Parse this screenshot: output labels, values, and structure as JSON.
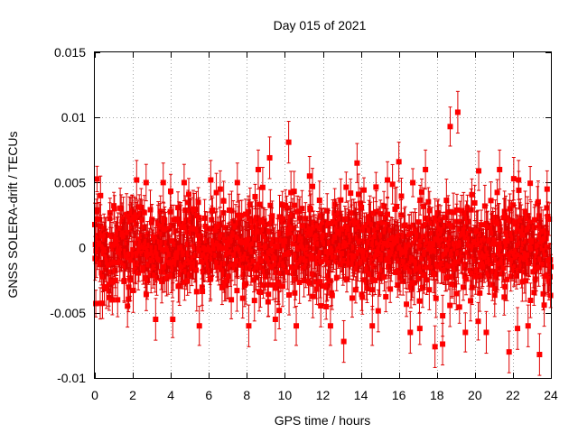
{
  "chart_data": {
    "type": "scatter",
    "title": "Day 015 of 2021",
    "xlabel": "GPS time / hours",
    "ylabel": "GNSS SOLERA-drift / TECUs",
    "xlim": [
      0,
      24
    ],
    "ylim": [
      -0.01,
      0.015
    ],
    "xticks": [
      0,
      2,
      4,
      6,
      8,
      10,
      12,
      14,
      16,
      18,
      20,
      22,
      24
    ],
    "yticks": [
      -0.01,
      -0.005,
      0,
      0.005,
      0.01,
      0.015
    ],
    "xtick_labels": [
      "0",
      "2",
      "4",
      "6",
      "8",
      "10",
      "12",
      "14",
      "16",
      "18",
      "20",
      "22",
      "24"
    ],
    "ytick_labels": [
      "-0.01",
      "-0.005",
      "0",
      "0.005",
      "0.01",
      "0.015"
    ],
    "grid": true,
    "marker": "square",
    "error_bars": true,
    "series_color": "#ff0000",
    "series": [
      {
        "points": [
          [
            0.1,
            0.0022,
            0.0012
          ],
          [
            0.3,
            0.004,
            0.0015
          ],
          [
            0.5,
            -0.003,
            0.0014
          ],
          [
            1.2,
            -0.004,
            0.0013
          ],
          [
            2.2,
            0.0052,
            0.0015
          ],
          [
            2.7,
            0.005,
            0.0014
          ],
          [
            3.2,
            -0.0055,
            0.0016
          ],
          [
            3.6,
            0.005,
            0.0015
          ],
          [
            4.1,
            -0.0055,
            0.0014
          ],
          [
            4.7,
            0.005,
            0.0014
          ],
          [
            5.5,
            -0.006,
            0.0015
          ],
          [
            6.1,
            0.0052,
            0.0015
          ],
          [
            6.6,
            0.0045,
            0.0014
          ],
          [
            7.5,
            0.005,
            0.0015
          ],
          [
            8.1,
            -0.006,
            0.0016
          ],
          [
            8.6,
            0.006,
            0.0015
          ],
          [
            9.2,
            0.0069,
            0.0016
          ],
          [
            9.5,
            -0.0055,
            0.0016
          ],
          [
            10.2,
            0.0081,
            0.0016
          ],
          [
            10.6,
            -0.006,
            0.0015
          ],
          [
            11.3,
            0.0055,
            0.0015
          ],
          [
            12.4,
            -0.006,
            0.0015
          ],
          [
            13.1,
            -0.0072,
            0.0016
          ],
          [
            13.8,
            0.0065,
            0.0015
          ],
          [
            14.6,
            -0.006,
            0.0015
          ],
          [
            15.4,
            0.0052,
            0.0014
          ],
          [
            16.0,
            0.0066,
            0.0015
          ],
          [
            16.6,
            -0.0065,
            0.0016
          ],
          [
            17.4,
            0.006,
            0.0015
          ],
          [
            17.9,
            -0.0076,
            0.0016
          ],
          [
            18.3,
            -0.0074,
            0.0016
          ],
          [
            18.7,
            0.0093,
            0.0015
          ],
          [
            19.1,
            0.0104,
            0.0016
          ],
          [
            19.5,
            -0.0065,
            0.0015
          ],
          [
            20.2,
            0.0059,
            0.0015
          ],
          [
            20.6,
            -0.0065,
            0.0016
          ],
          [
            21.3,
            0.006,
            0.0015
          ],
          [
            21.8,
            -0.008,
            0.0016
          ],
          [
            22.3,
            0.0052,
            0.0015
          ],
          [
            22.8,
            -0.006,
            0.0016
          ],
          [
            23.4,
            -0.0082,
            0.0016
          ],
          [
            23.8,
            0.0045,
            0.0014
          ]
        ],
        "noise_band": {
          "center": 0.0,
          "std": 0.0018,
          "point_spacing_hours": 0.0167,
          "typical_error": 0.0013
        }
      }
    ]
  }
}
